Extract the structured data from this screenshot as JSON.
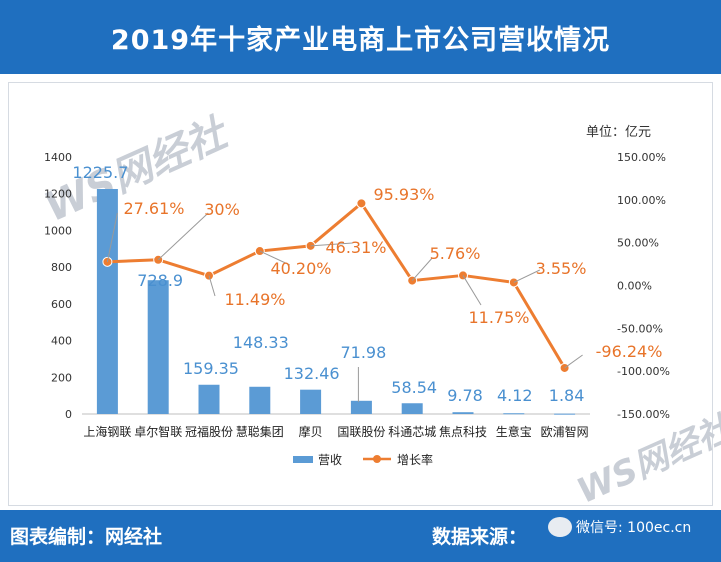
{
  "header": {
    "title": "2019年十家产业电商上市公司营收情况"
  },
  "unit_label": "单位：亿元",
  "footer": {
    "credit": "图表编制：网经社",
    "source": "数据来源：",
    "wechat_text": "微信号: 100ec.cn"
  },
  "watermark": {
    "text": "WS网经社"
  },
  "chart_data": {
    "type": "bar+line",
    "title": "2019年十家产业电商上市公司营收情况",
    "categories": [
      "上海钢联",
      "卓尔智联",
      "冠福股份",
      "慧聪集团",
      "摩贝",
      "国联股份",
      "科通芯城",
      "焦点科技",
      "生意宝",
      "欧浦智网"
    ],
    "series": [
      {
        "name": "营收",
        "type": "bar",
        "axis": "left",
        "values": [
          1225.7,
          728.9,
          159.35,
          148.33,
          132.46,
          71.98,
          58.54,
          9.78,
          4.12,
          1.84
        ],
        "labels": [
          "1225.7",
          "728.9",
          "159.35",
          "148.33",
          "132.46",
          "71.98",
          "58.54",
          "9.78",
          "4.12",
          "1.84"
        ],
        "color": "#5b9bd5"
      },
      {
        "name": "增长率",
        "type": "line",
        "axis": "right",
        "values": [
          27.61,
          30,
          11.49,
          40.2,
          46.31,
          95.93,
          5.76,
          11.75,
          3.55,
          -96.24
        ],
        "labels": [
          "27.61%",
          "30%",
          "11.49%",
          "40.20%",
          "46.31%",
          "95.93%",
          "5.76%",
          "11.75%",
          "3.55%",
          "-96.24%"
        ],
        "color": "#ed7d31"
      }
    ],
    "y_left": {
      "min": 0,
      "max": 1400,
      "ticks": [
        "0",
        "200",
        "400",
        "600",
        "800",
        "1000",
        "1200",
        "1400"
      ]
    },
    "y_right": {
      "min": -150,
      "max": 150,
      "ticks": [
        "-150.00%",
        "-100.00%",
        "-50.00%",
        "0.00%",
        "50.00%",
        "100.00%",
        "150.00%"
      ]
    },
    "legend": [
      "营收",
      "增长率"
    ],
    "legend_position": "bottom"
  }
}
